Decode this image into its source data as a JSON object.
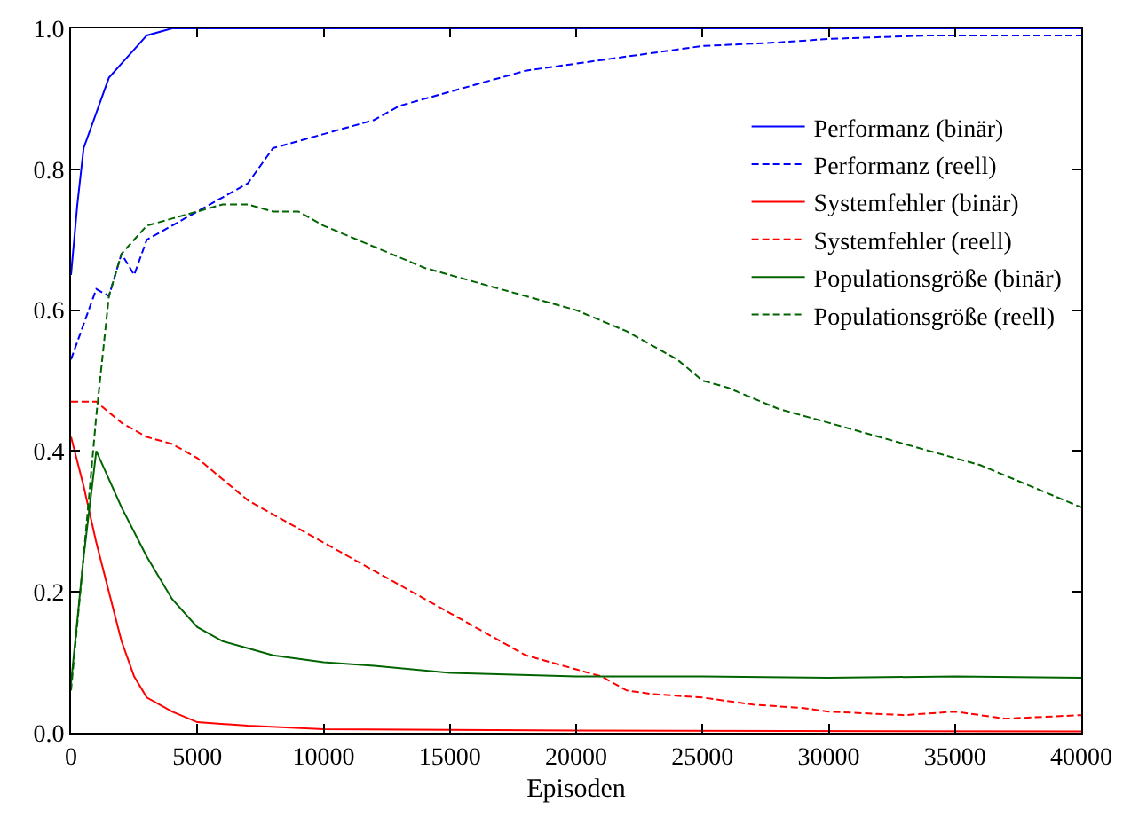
{
  "chart_data": {
    "type": "line",
    "xlabel": "Episoden",
    "xlim": [
      0,
      40000
    ],
    "ylim": [
      0,
      1.0
    ],
    "xticks": [
      0,
      5000,
      10000,
      15000,
      20000,
      25000,
      30000,
      35000,
      40000
    ],
    "yticks": [
      {
        "value": 0,
        "label": "0.0"
      },
      0.2,
      0.4,
      0.6,
      0.8,
      {
        "value": 1,
        "label": "1.0"
      }
    ],
    "legend": "top right",
    "marker": "none",
    "series": [
      {
        "name": "Performanz (binär)",
        "color": "#0000ff",
        "line_style": "solid",
        "x": [
          0,
          250,
          500,
          1000,
          1500,
          2000,
          2500,
          3000,
          4000,
          5000,
          40000
        ],
        "values": [
          0.65,
          0.75,
          0.83,
          0.88,
          0.93,
          0.95,
          0.97,
          0.99,
          1.0,
          1.0,
          1.0
        ]
      },
      {
        "name": "Performanz (reell)",
        "color": "#0000ff",
        "line_style": "dashed",
        "x": [
          0,
          500,
          1000,
          1500,
          2000,
          2500,
          3000,
          4000,
          5000,
          6000,
          7000,
          8000,
          9000,
          10000,
          11000,
          12000,
          13000,
          14000,
          15000,
          16000,
          17000,
          18000,
          20000,
          22000,
          25000,
          28000,
          30000,
          34000,
          37000,
          40000
        ],
        "values": [
          0.53,
          0.58,
          0.63,
          0.62,
          0.68,
          0.65,
          0.7,
          0.72,
          0.74,
          0.76,
          0.78,
          0.83,
          0.84,
          0.85,
          0.86,
          0.87,
          0.89,
          0.9,
          0.91,
          0.92,
          0.93,
          0.94,
          0.95,
          0.96,
          0.975,
          0.98,
          0.985,
          0.99,
          0.99,
          0.99
        ]
      },
      {
        "name": "Systemfehler (binär)",
        "color": "#ff0000",
        "line_style": "solid",
        "x": [
          0,
          500,
          1000,
          1500,
          2000,
          2500,
          3000,
          4000,
          5000,
          7000,
          10000,
          20000,
          40000
        ],
        "values": [
          0.42,
          0.35,
          0.27,
          0.2,
          0.13,
          0.08,
          0.05,
          0.03,
          0.015,
          0.01,
          0.005,
          0.003,
          0.002
        ]
      },
      {
        "name": "Systemfehler (reell)",
        "color": "#ff0000",
        "line_style": "dashed",
        "x": [
          0,
          1000,
          2000,
          3000,
          4000,
          5000,
          6000,
          7000,
          8000,
          9000,
          10000,
          11000,
          12000,
          13000,
          14000,
          15000,
          16000,
          17000,
          18000,
          19000,
          20000,
          21000,
          22000,
          23000,
          25000,
          27000,
          29000,
          30000,
          33000,
          35000,
          37000,
          40000
        ],
        "values": [
          0.47,
          0.47,
          0.44,
          0.42,
          0.41,
          0.39,
          0.36,
          0.33,
          0.31,
          0.29,
          0.27,
          0.25,
          0.23,
          0.21,
          0.19,
          0.17,
          0.15,
          0.13,
          0.11,
          0.1,
          0.09,
          0.08,
          0.06,
          0.055,
          0.05,
          0.04,
          0.035,
          0.03,
          0.025,
          0.03,
          0.02,
          0.025
        ]
      },
      {
        "name": "Populationsgröße (binär)",
        "color": "#006400",
        "line_style": "solid",
        "x": [
          0,
          500,
          1000,
          1500,
          2000,
          3000,
          4000,
          5000,
          6000,
          7000,
          8000,
          10000,
          12000,
          15000,
          20000,
          25000,
          30000,
          35000,
          40000
        ],
        "values": [
          0.07,
          0.25,
          0.4,
          0.36,
          0.32,
          0.25,
          0.19,
          0.15,
          0.13,
          0.12,
          0.11,
          0.1,
          0.095,
          0.085,
          0.08,
          0.08,
          0.078,
          0.08,
          0.078
        ]
      },
      {
        "name": "Populationsgröße (reell)",
        "color": "#006400",
        "line_style": "dashed",
        "x": [
          0,
          500,
          1000,
          1500,
          2000,
          3000,
          4000,
          5000,
          6000,
          7000,
          8000,
          9000,
          10000,
          12000,
          14000,
          16000,
          18000,
          20000,
          22000,
          24000,
          25000,
          26000,
          28000,
          30000,
          32000,
          34000,
          36000,
          38000,
          40000
        ],
        "values": [
          0.06,
          0.25,
          0.45,
          0.62,
          0.68,
          0.72,
          0.73,
          0.74,
          0.75,
          0.75,
          0.74,
          0.74,
          0.72,
          0.69,
          0.66,
          0.64,
          0.62,
          0.6,
          0.57,
          0.53,
          0.5,
          0.49,
          0.46,
          0.44,
          0.42,
          0.4,
          0.38,
          0.35,
          0.32
        ]
      }
    ]
  }
}
